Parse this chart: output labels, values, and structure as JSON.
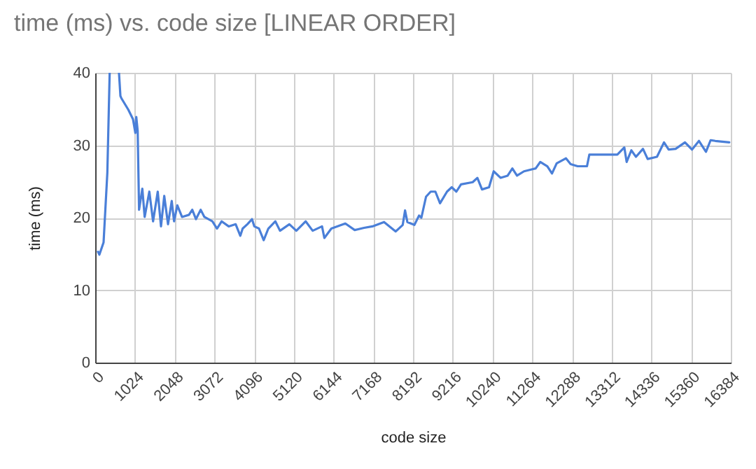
{
  "chart_data": {
    "type": "line",
    "title": "time (ms) vs. code size [LINEAR ORDER]",
    "xlabel": "code size",
    "ylabel": "time (ms)",
    "x": [
      72,
      108,
      216,
      313,
      373,
      500,
      613,
      650,
      674,
      854,
      974,
      1035,
      1059,
      1095,
      1131,
      1215,
      1275,
      1395,
      1492,
      1612,
      1696,
      1780,
      1877,
      1973,
      2033,
      2117,
      2238,
      2418,
      2502,
      2598,
      2719,
      2815,
      3020,
      3140,
      3260,
      3441,
      3621,
      3741,
      3801,
      3922,
      4042,
      4102,
      4222,
      4343,
      4463,
      4644,
      4764,
      5005,
      5185,
      5426,
      5606,
      5847,
      5907,
      6087,
      6448,
      6689,
      6929,
      7145,
      7446,
      7747,
      7927,
      7987,
      8047,
      8228,
      8348,
      8408,
      8528,
      8648,
      8769,
      8889,
      9069,
      9190,
      9310,
      9430,
      9731,
      9851,
      9971,
      10152,
      10272,
      10452,
      10632,
      10753,
      10873,
      11053,
      11354,
      11474,
      11655,
      11775,
      11895,
      12136,
      12256,
      12437,
      12677,
      12737,
      13158,
      13459,
      13639,
      13699,
      13820,
      13940,
      14120,
      14241,
      14481,
      14662,
      14782,
      14962,
      15203,
      15383,
      15564,
      15744,
      15864,
      15984,
      16345
    ],
    "series": [
      {
        "color": "#4a7fd8",
        "values": [
          15.3,
          14.9,
          16.6,
          26.2,
          40,
          null,
          40,
          36.8,
          36.5,
          34.9,
          33.6,
          31.7,
          33.9,
          32.0,
          21.1,
          24.0,
          20.1,
          23.6,
          19.5,
          23.6,
          18.8,
          23.0,
          19.1,
          22.3,
          19.5,
          21.7,
          20.1,
          20.4,
          21.1,
          19.8,
          21.1,
          20.1,
          19.5,
          18.5,
          19.5,
          18.8,
          19.1,
          17.5,
          18.5,
          19.1,
          19.8,
          18.8,
          18.5,
          16.9,
          18.5,
          19.5,
          18.2,
          19.1,
          18.2,
          19.5,
          18.2,
          18.8,
          17.2,
          18.5,
          19.2,
          18.3,
          18.6,
          18.8,
          19.4,
          18.1,
          19.0,
          21.0,
          19.4,
          19.0,
          20.3,
          20.0,
          22.9,
          23.6,
          23.6,
          22.0,
          23.6,
          24.2,
          23.6,
          24.6,
          24.9,
          25.5,
          23.9,
          24.2,
          26.4,
          25.5,
          25.8,
          26.8,
          25.8,
          26.4,
          26.8,
          27.7,
          27.1,
          26.1,
          27.5,
          28.2,
          27.4,
          27.1,
          27.1,
          28.7,
          28.7,
          28.7,
          29.7,
          27.7,
          29.3,
          28.4,
          29.5,
          28.1,
          28.4,
          30.4,
          29.4,
          29.5,
          30.4,
          29.4,
          30.6,
          29.1,
          30.7,
          30.6,
          30.4
        ]
      }
    ],
    "xlim": [
      0,
      16384
    ],
    "xticks": [
      0,
      1024,
      2048,
      3072,
      4096,
      5120,
      6144,
      7168,
      8192,
      9216,
      10240,
      11264,
      12288,
      13312,
      14336,
      15360,
      16384
    ],
    "ylim": [
      0,
      40
    ],
    "yticks": [
      0,
      10,
      20,
      30,
      40
    ],
    "grid": true,
    "legend": false,
    "marker": "none",
    "line_style": "solid"
  }
}
